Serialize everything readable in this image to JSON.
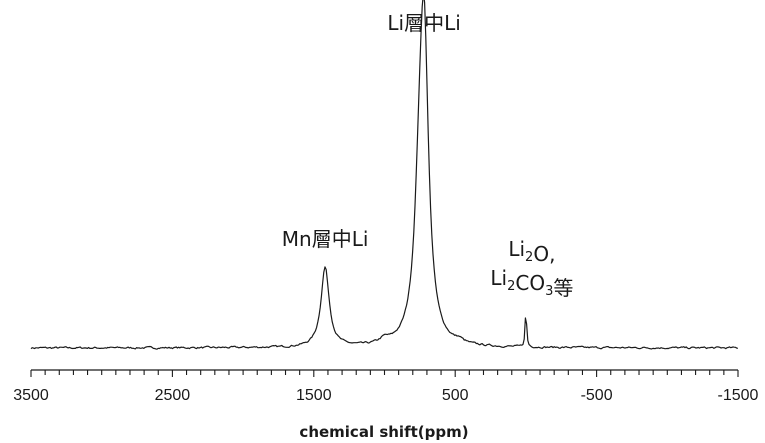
{
  "chart_data": {
    "type": "line",
    "xlabel": "chemical shift(ppm)",
    "xlim": [
      3500,
      -1500
    ],
    "x_reversed": true,
    "x_ticks": [
      3500,
      2500,
      1500,
      500,
      -500,
      -1500
    ],
    "x_tick_labels": [
      "3500",
      "2500",
      "1500",
      "500",
      "-500",
      "-1500"
    ],
    "y_axis_visible": false,
    "grid": false,
    "series": [
      {
        "color": "#1a1a1a",
        "peaks": [
          {
            "center": 1420,
            "height": 0.27,
            "width": 35
          },
          {
            "center": 720,
            "height": 1.0,
            "width": 38
          },
          {
            "center": 755,
            "height": 0.34,
            "width": 40
          },
          {
            "center": 0,
            "height": 0.13,
            "width": 6
          },
          {
            "center": 1000,
            "height": 0.015,
            "width": 40
          },
          {
            "center": 470,
            "height": 0.01,
            "width": 30
          }
        ]
      }
    ],
    "annotations": [
      {
        "text": "Li層中Li",
        "x": 720
      },
      {
        "text": "Mn層中Li",
        "x": 1420
      },
      {
        "lines": [
          {
            "parts": [
              {
                "t": "Li"
              },
              {
                "t": "2",
                "sub": true
              },
              {
                "t": "O,"
              }
            ]
          },
          {
            "parts": [
              {
                "t": "Li"
              },
              {
                "t": "2",
                "sub": true
              },
              {
                "t": "CO"
              },
              {
                "t": "3",
                "sub": true
              },
              {
                "t": "等"
              }
            ]
          }
        ],
        "x": 0
      }
    ]
  }
}
